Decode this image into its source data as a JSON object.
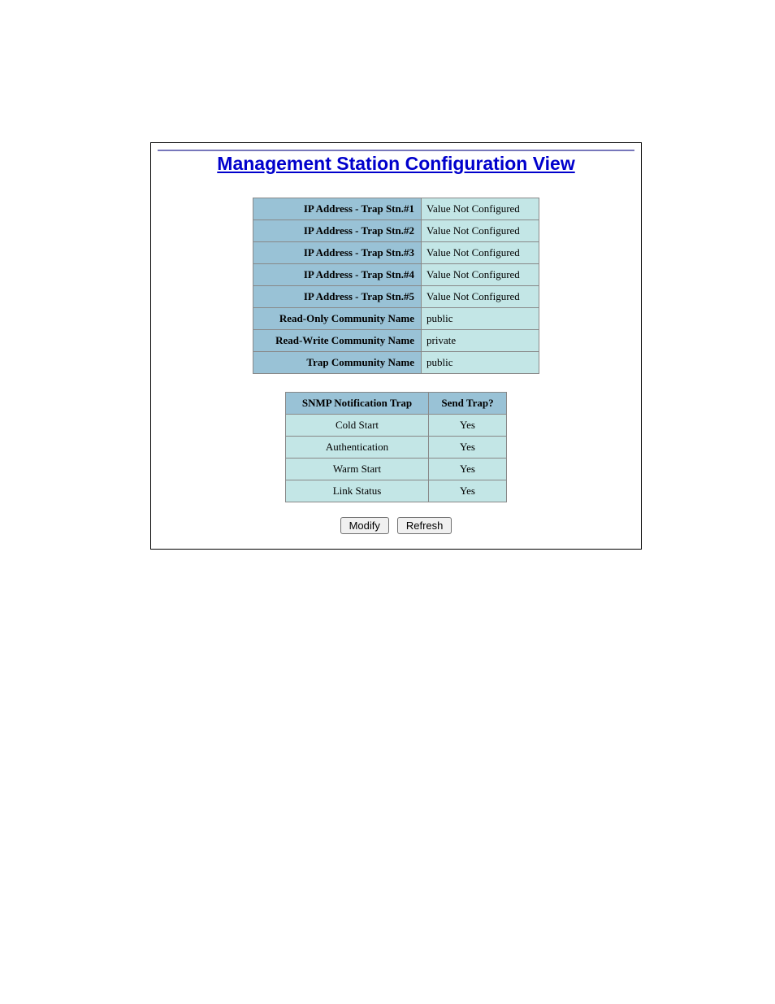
{
  "title": "Management Station Configuration View",
  "config_rows": [
    {
      "label": "IP Address - Trap Stn.#1",
      "value": "Value Not Configured"
    },
    {
      "label": "IP Address - Trap Stn.#2",
      "value": "Value Not Configured"
    },
    {
      "label": "IP Address - Trap Stn.#3",
      "value": "Value Not Configured"
    },
    {
      "label": "IP Address - Trap Stn.#4",
      "value": "Value Not Configured"
    },
    {
      "label": "IP Address - Trap Stn.#5",
      "value": "Value Not Configured"
    },
    {
      "label": "Read-Only Community Name",
      "value": "public"
    },
    {
      "label": "Read-Write Community Name",
      "value": "private"
    },
    {
      "label": "Trap Community Name",
      "value": "public"
    }
  ],
  "traps_table": {
    "headers": [
      "SNMP Notification Trap",
      "Send Trap?"
    ],
    "rows": [
      [
        "Cold Start",
        "Yes"
      ],
      [
        "Authentication",
        "Yes"
      ],
      [
        "Warm Start",
        "Yes"
      ],
      [
        "Link Status",
        "Yes"
      ]
    ]
  },
  "buttons": {
    "modify": "Modify",
    "refresh": "Refresh"
  },
  "colors": {
    "title_color": "#0000cc",
    "header_bg": "#99c2d6",
    "cell_bg": "#c3e6e6",
    "border_rule": "#7777bb"
  }
}
